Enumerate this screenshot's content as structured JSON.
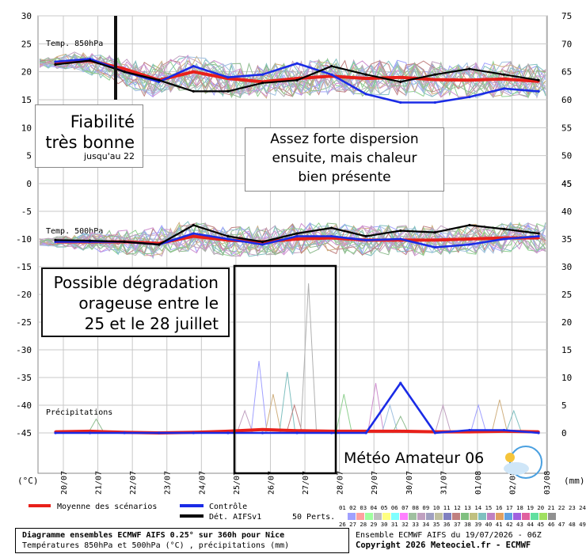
{
  "chart_data": [
    {
      "type": "line",
      "panel": "Temp. 850hPa",
      "ylabel": "(°C)",
      "ylim": [
        0,
        30
      ],
      "yticks": [
        0,
        5,
        10,
        15,
        20,
        25,
        30
      ],
      "right_axis": {
        "unit": "(mm)",
        "ticks": [
          45,
          50,
          55,
          60,
          65,
          70,
          75
        ]
      },
      "x": [
        "20/07",
        "21/07",
        "22/07",
        "23/07",
        "24/07",
        "25/07",
        "26/07",
        "27/07",
        "28/07",
        "29/07",
        "30/07",
        "31/07",
        "01/08",
        "02/08",
        "03/08"
      ],
      "series": [
        {
          "name": "Moyenne des scénarios",
          "color": "#e8201a",
          "values": [
            21.5,
            22.0,
            20.5,
            18.5,
            20.0,
            18.8,
            18.2,
            18.8,
            19.2,
            18.8,
            19.0,
            18.6,
            18.5,
            18.7,
            18.3
          ]
        },
        {
          "name": "Contrôle",
          "color": "#1a2be6",
          "values": [
            21.8,
            22.3,
            20.0,
            18.2,
            21.0,
            19.0,
            19.5,
            21.5,
            19.5,
            16.0,
            14.5,
            14.5,
            15.5,
            17.0,
            16.5
          ]
        },
        {
          "name": "Dét. AIFSv1",
          "color": "#000000",
          "values": [
            21.3,
            22.0,
            20.0,
            18.5,
            16.5,
            16.5,
            18.0,
            18.5,
            21.0,
            19.5,
            18.2,
            19.5,
            20.5,
            19.5,
            18.5
          ]
        }
      ]
    },
    {
      "type": "line",
      "panel": "Temp. 500hPa",
      "ylim": [
        -45,
        0
      ],
      "yticks": [
        -45,
        -40,
        -35,
        -30,
        -25,
        -20,
        -15,
        -10,
        -5,
        0
      ],
      "right_axis": {
        "ticks": [
          0,
          5,
          10,
          15,
          20,
          25,
          30,
          35,
          40,
          45
        ]
      },
      "series": [
        {
          "name": "Moyenne des scénarios",
          "color": "#e8201a",
          "values": [
            -10.5,
            -10.5,
            -10.5,
            -10.8,
            -9.5,
            -10.2,
            -10.5,
            -10.0,
            -9.8,
            -10.2,
            -10.2,
            -10.2,
            -10.0,
            -9.8,
            -9.8
          ]
        },
        {
          "name": "Contrôle",
          "color": "#1a2be6",
          "values": [
            -10.5,
            -10.5,
            -10.5,
            -11.0,
            -9.0,
            -10.0,
            -11.0,
            -9.5,
            -9.5,
            -10.2,
            -10.0,
            -11.5,
            -11.0,
            -10.0,
            -9.5
          ]
        },
        {
          "name": "Dét. AIFSv1",
          "color": "#000000",
          "values": [
            -10.2,
            -10.3,
            -10.5,
            -11.0,
            -7.5,
            -9.5,
            -10.5,
            -9.0,
            -8.0,
            -9.5,
            -8.5,
            -8.8,
            -7.5,
            -8.2,
            -9.0
          ]
        }
      ]
    },
    {
      "type": "line",
      "panel": "Précipitations",
      "series": [
        {
          "name": "Moyenne des scénarios",
          "color": "#e8201a",
          "values": [
            0.2,
            0.3,
            0.1,
            0.0,
            0.1,
            0.3,
            0.6,
            0.4,
            0.3,
            0.3,
            0.3,
            0.2,
            0.2,
            0.3,
            0.2
          ]
        },
        {
          "name": "Contrôle",
          "color": "#1a2be6",
          "values": [
            0.0,
            0.0,
            0.0,
            0.0,
            0.0,
            0.0,
            0.0,
            0.0,
            0.0,
            0.0,
            9.0,
            0.0,
            0.5,
            0.5,
            0.0
          ]
        }
      ]
    }
  ],
  "labels": {
    "panel_850": "Temp. 850hPa",
    "panel_500": "Temp. 500hPa",
    "panel_precip": "Précipitations",
    "left_unit": "(°C)",
    "right_unit": "(mm)"
  },
  "annotations": {
    "reliability_title": "Fiabilité\ntrès bonne",
    "reliability_sub": "jusqu'au 22",
    "dispersion": "Assez forte dispersion\nensuite, mais chaleur\nbien présente",
    "storm": "Possible dégradation\norageuse entre le\n25 et le 28 juillet",
    "brand": "Météo Amateur 06"
  },
  "legend": {
    "mean": "Moyenne des scénarios",
    "control": "Contrôle",
    "det": "Dét. AIFSv1",
    "perts": "50 Perts.",
    "pert_row1": "01 02 03 04 05 06 07 08 09 10 11 12 13 14 15 16 17 18 19 20 21 22 23 24 25",
    "pert_row2": "26 27 28 29 30 31 32 33 34 35 36 37 38 39 40 41 42 43 44 45 46 47 48 49 50"
  },
  "footer": {
    "title": "Diagramme ensembles ECMWF AIFS 0.25° sur 360h pour Nice",
    "subtitle": "Températures 850hPa et 500hPa (°C) , précipitations (mm)",
    "run": "Ensemble ECMWF AIFS du 19/07/2026 - 06Z",
    "copyright": "Copyright 2026 Meteociel.fr - ECMWF"
  },
  "colors": {
    "mean": "#e8201a",
    "control": "#1a2be6",
    "det": "#000000",
    "grid": "#c8c8c8",
    "marker": "#111111"
  }
}
